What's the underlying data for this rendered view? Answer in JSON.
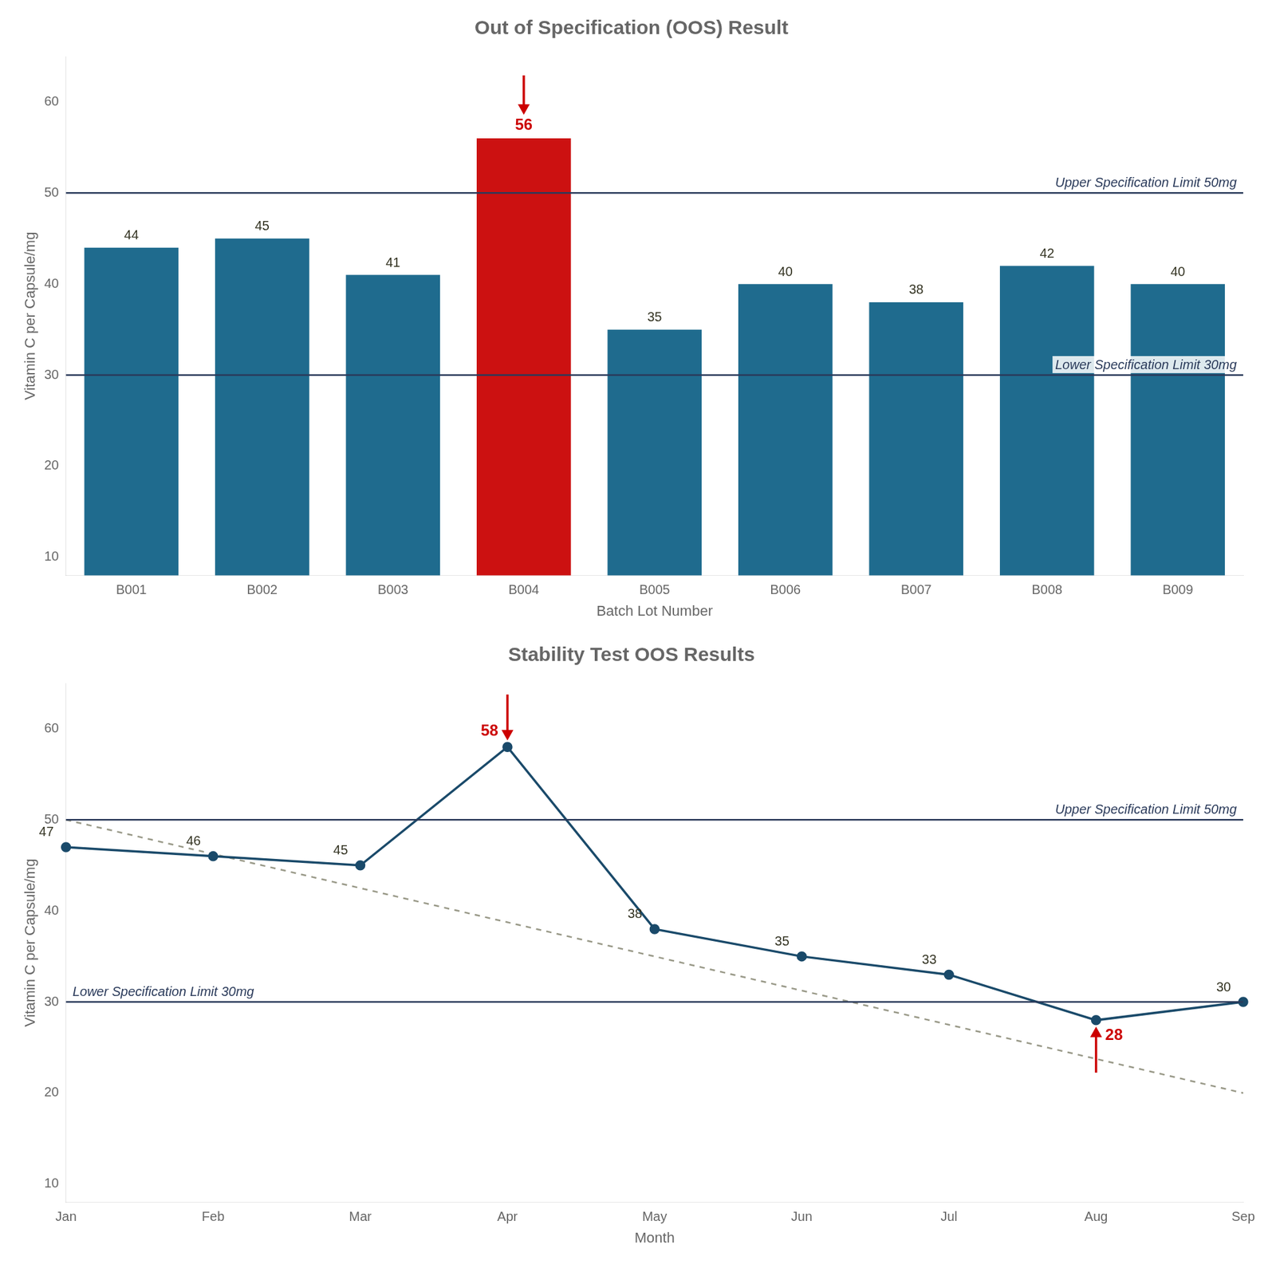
{
  "chart_data": [
    {
      "type": "bar",
      "title": "Out of Specification (OOS) Result",
      "xlabel": "Batch Lot Number",
      "ylabel": "Vitamin C per Capsule/mg",
      "categories": [
        "B001",
        "B002",
        "B003",
        "B004",
        "B005",
        "B006",
        "B007",
        "B008",
        "B009"
      ],
      "values": [
        44,
        45,
        41,
        56,
        35,
        40,
        38,
        42,
        40
      ],
      "colors": [
        "#1f6b8e",
        "#1f6b8e",
        "#1f6b8e",
        "#cc1111",
        "#1f6b8e",
        "#1f6b8e",
        "#1f6b8e",
        "#1f6b8e",
        "#1f6b8e"
      ],
      "ylim": [
        8,
        65
      ],
      "yticks": [
        10,
        20,
        30,
        40,
        50,
        60
      ],
      "grid": false,
      "data_labels": true,
      "annotations": [
        {
          "type": "hline",
          "y": 50,
          "text": "Upper Specification Limit 50mg",
          "color": "#2a3a5a"
        },
        {
          "type": "hline",
          "y": 30,
          "text": "Lower Specification Limit 30mg",
          "color": "#2a3a5a"
        },
        {
          "type": "arrow",
          "x": "B004",
          "direction": "down",
          "color": "#cc0000"
        }
      ]
    },
    {
      "type": "line",
      "title": "Stability Test OOS Results",
      "xlabel": "Month",
      "ylabel": "Vitamin C per Capsule/mg",
      "categories": [
        "Jan",
        "Feb",
        "Mar",
        "Apr",
        "May",
        "Jun",
        "Jul",
        "Aug",
        "Sep"
      ],
      "series": [
        {
          "values": [
            47,
            46,
            45,
            58,
            38,
            35,
            33,
            28,
            30
          ],
          "color": "#1a4a6a",
          "marker": "circle",
          "data_labels": true
        },
        {
          "values": [
            50,
            null,
            null,
            null,
            null,
            null,
            null,
            null,
            20
          ],
          "color": "#999988",
          "line_style": "dashed",
          "marker": "none"
        }
      ],
      "ylim": [
        8,
        65
      ],
      "yticks": [
        10,
        20,
        30,
        40,
        50,
        60
      ],
      "grid": false,
      "annotations": [
        {
          "type": "hline",
          "y": 50,
          "text": "Upper Specification Limit 50mg",
          "color": "#2a3a5a"
        },
        {
          "type": "hline",
          "y": 30,
          "text": "Lower Specification Limit 30mg",
          "color": "#2a3a5a"
        },
        {
          "type": "arrow",
          "x": "Apr",
          "direction": "down",
          "color": "#cc0000"
        },
        {
          "type": "arrow",
          "x": "Aug",
          "direction": "up",
          "color": "#cc0000"
        }
      ]
    }
  ]
}
